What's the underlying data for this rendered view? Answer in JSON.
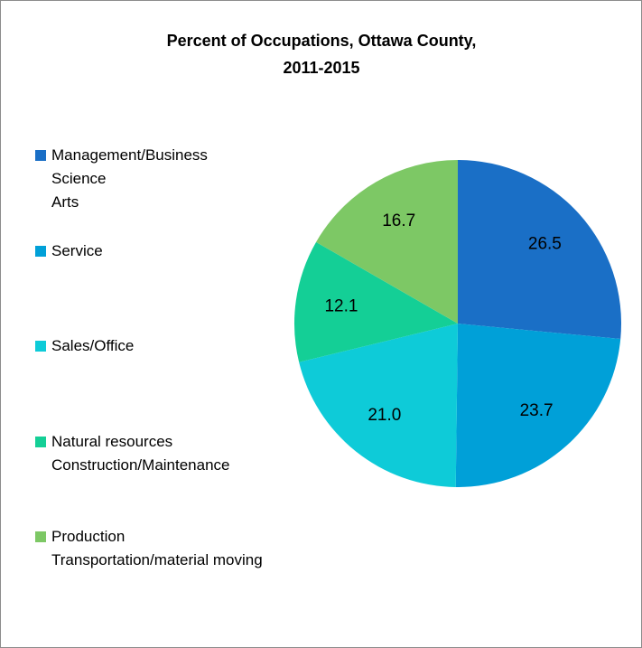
{
  "chart_data": {
    "type": "pie",
    "title": "Percent of Occupations, Ottawa County,\n2011-2015",
    "categories": [
      "Management/Business\nScience\nArts",
      "Service",
      "Sales/Office",
      "Natural resources\nConstruction/Maintenance",
      "Production\nTransportation/material moving"
    ],
    "values": [
      26.5,
      23.7,
      21.0,
      12.1,
      16.7
    ],
    "value_labels": [
      "26.5",
      "23.7",
      "21.0",
      "12.1",
      "16.7"
    ],
    "colors": [
      "#1a6fc6",
      "#00a0d8",
      "#0ecbd8",
      "#14cf96",
      "#7dc865"
    ],
    "legend": "left"
  }
}
